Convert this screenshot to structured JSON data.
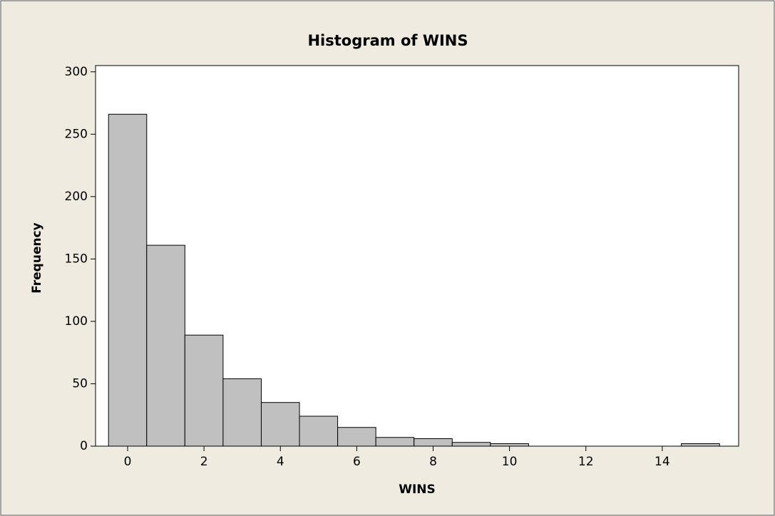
{
  "chart_data": {
    "type": "histogram",
    "title": "Histogram of WINS",
    "x_label": "WINS",
    "y_label": "Frequency",
    "bins": [
      -0.5,
      0.5,
      1.5,
      2.5,
      3.5,
      4.5,
      5.5,
      6.5,
      7.5,
      8.5,
      9.5,
      10.5,
      11.5,
      12.5,
      13.5,
      14.5,
      15.5
    ],
    "values": [
      266,
      161,
      89,
      54,
      35,
      24,
      15,
      7,
      6,
      3,
      2,
      0,
      0,
      0,
      0,
      2
    ],
    "color": "#c0c0c0",
    "xlim": [
      -0.84,
      16.0
    ],
    "xticks": [
      0,
      2,
      4,
      6,
      8,
      10,
      12,
      14
    ],
    "ylim": [
      0,
      305
    ],
    "yticks": [
      0,
      50,
      100,
      150,
      200,
      250,
      300
    ]
  }
}
